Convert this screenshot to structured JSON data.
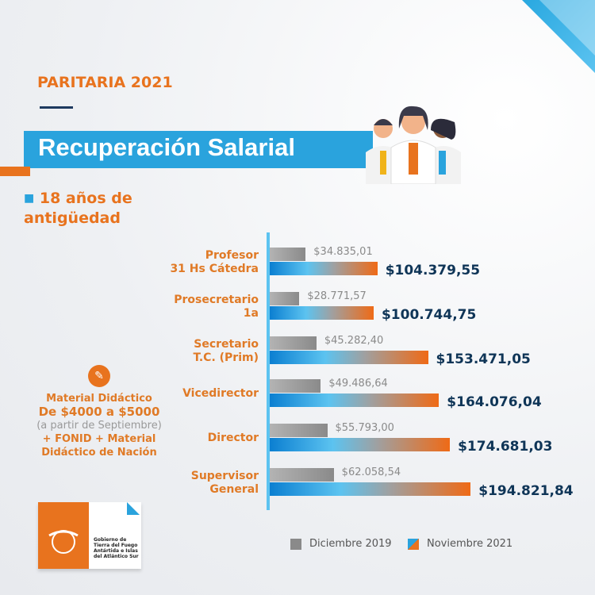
{
  "header": {
    "kicker": "PARITARIA 2021",
    "title": "Recuperación Salarial",
    "subtitle_line1": "18 años de",
    "subtitle_line2": "antigüedad"
  },
  "side_note": {
    "icon": "pencil-paper-icon",
    "line1": "Material Didáctico",
    "line2": "De $4000 a $5000",
    "line3": "(a partir de Septiembre)",
    "line4": "+ FONID + Material",
    "line5": "Didáctico de Nación"
  },
  "logo": {
    "line1": "Gobierno de",
    "line2": "Tierra del Fuego",
    "line3": "Antártida e Islas",
    "line4": "del Atlántico Sur"
  },
  "colors": {
    "accent_orange": "#e8731e",
    "accent_blue": "#2aa3dd",
    "dark_blue": "#0f3557",
    "gray": "#9a9a9a"
  },
  "chart_data": {
    "type": "bar",
    "orientation": "horizontal",
    "categories": [
      [
        "Profesor",
        "31 Hs Cátedra"
      ],
      [
        "Prosecretario",
        "1a"
      ],
      [
        "Secretario",
        "T.C. (Prim)"
      ],
      [
        "Vicedirector",
        ""
      ],
      [
        "Director",
        ""
      ],
      [
        "Supervisor",
        "General"
      ]
    ],
    "series": [
      {
        "name": "Diciembre 2019",
        "values": [
          34835.01,
          28771.57,
          45282.4,
          49486.64,
          55793.0,
          62058.54
        ],
        "labels": [
          "$34.835,01",
          "$28.771,57",
          "$45.282,40",
          "$49.486,64",
          "$55.793,00",
          "$62.058,54"
        ]
      },
      {
        "name": "Noviembre 2021",
        "values": [
          104379.55,
          100744.75,
          153471.05,
          164076.04,
          174681.03,
          194821.84
        ],
        "labels": [
          "$104.379,55",
          "$100.744,75",
          "$153.471,05",
          "$164.076,04",
          "$174.681,03",
          "$194.821,84"
        ]
      }
    ],
    "legend": "bottom"
  }
}
